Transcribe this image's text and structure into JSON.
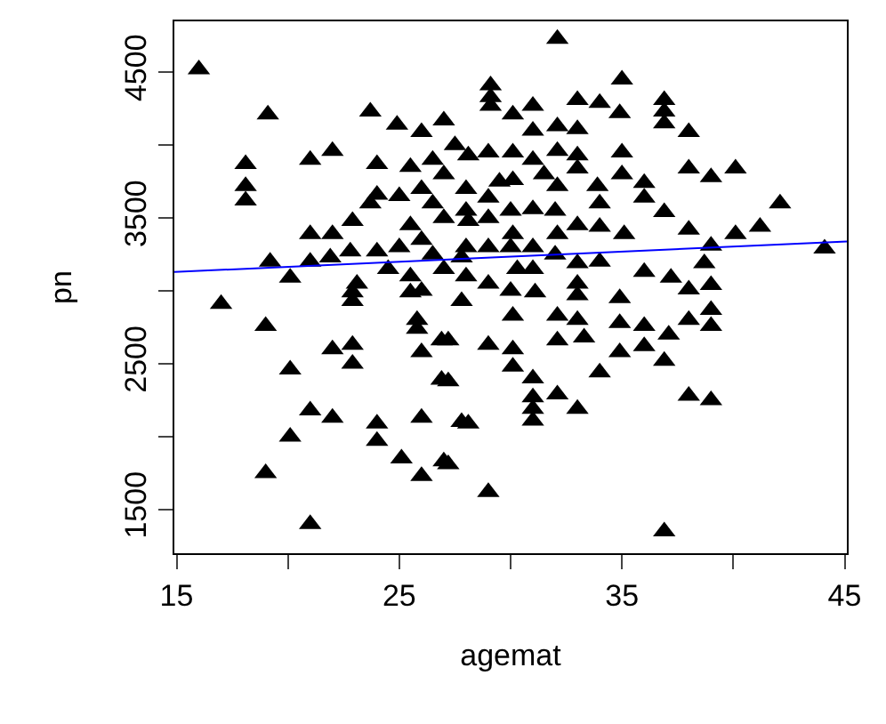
{
  "chart_data": {
    "type": "scatter",
    "xlabel": "agemat",
    "ylabel": "pn",
    "marker": "triangle",
    "xlim": [
      14.9,
      45.1
    ],
    "ylim": [
      1200,
      4850
    ],
    "xticks": [
      15,
      {
        "value": 20,
        "label": null
      },
      25,
      {
        "value": 30,
        "label": null
      },
      35,
      {
        "value": 40,
        "label": null
      },
      45
    ],
    "yticks": [
      {
        "value": 1500,
        "label": "1500"
      },
      {
        "value": 2000,
        "label": null
      },
      {
        "value": 2500,
        "label": "2500"
      },
      {
        "value": 3000,
        "label": null
      },
      {
        "value": 3500,
        "label": "3500"
      },
      {
        "value": 4000,
        "label": null
      },
      {
        "value": 4500,
        "label": "4500"
      }
    ],
    "series": [
      {
        "color": "#000000",
        "x": [
          16.0,
          19.1,
          23.7,
          24.9,
          26.0,
          27.0,
          22.0,
          21.0,
          18.1,
          24.0,
          18.1,
          18.1,
          24.0,
          23.7,
          21.0,
          22.0,
          22.9,
          19.2,
          21.0,
          21.9,
          22.8,
          24.0,
          20.1,
          23.1,
          17.0,
          19.0,
          20.1,
          22.0,
          22.9,
          22.9,
          21.0,
          22.0,
          24.0,
          24.0,
          26.0,
          20.1,
          19.0,
          21.0,
          25.1,
          26.0,
          27.0,
          25.8,
          25.8,
          26.9,
          26.0,
          26.9,
          27.8,
          22.9,
          22.9,
          25.5,
          36.9,
          29.0,
          28.1,
          31.0,
          31.0,
          31.0,
          33.0,
          32.1,
          38.0,
          39.0,
          30.1,
          31.0,
          34.0,
          29.0,
          30.1,
          32.1,
          33.3,
          34.9,
          36.0,
          36.9,
          34.9,
          36.0,
          37.1,
          38.0,
          39.0,
          39.0,
          39.0,
          38.0,
          34.9,
          33.0,
          30.1,
          32.1,
          33.0,
          27.8,
          31.1,
          27.2,
          27.2,
          27.2,
          32.1,
          35.0,
          29.1,
          29.1,
          29.1,
          30.1,
          31.0,
          33.0,
          34.0,
          34.9,
          36.9,
          36.9,
          36.9,
          38.0,
          31.0,
          32.1,
          33.0,
          28.1,
          29.0,
          30.1,
          31.0,
          32.1,
          33.0,
          35.0,
          30.1,
          33.0,
          35.0,
          36.0,
          38.0,
          39.0,
          40.1,
          42.1,
          44.1,
          41.2,
          40.1,
          39.0,
          38.0,
          36.9,
          36.0,
          33.9,
          32.1,
          34.0,
          35.1,
          33.0,
          36.0,
          38.7,
          31.0,
          29.0,
          28.1,
          30.1,
          32.1,
          27.8,
          30.3,
          37.2,
          25.5,
          26.0,
          26.5,
          27.0,
          25.5,
          26.0,
          26.5,
          27.0,
          25.5,
          26.0,
          27.0,
          28.0,
          28.0,
          28.0,
          28.0,
          29.0,
          29.0,
          29.0,
          30.0,
          30.0,
          30.0,
          31.0,
          31.0,
          32.0,
          32.0,
          33.0,
          33.0,
          34.0,
          34.0,
          26.5,
          27.5,
          25.0,
          25.0,
          24.5,
          29.5,
          31.5
        ],
        "values": [
          4520,
          4210,
          4230,
          4140,
          4090,
          4170,
          3960,
          3900,
          3870,
          3870,
          3720,
          3620,
          3660,
          3600,
          3390,
          3390,
          3480,
          3200,
          3200,
          3230,
          3270,
          3270,
          3090,
          3050,
          2910,
          2760,
          2460,
          2600,
          2630,
          2500,
          2180,
          2130,
          2090,
          1970,
          2130,
          2000,
          1750,
          1400,
          1850,
          1730,
          1830,
          2740,
          2800,
          2660,
          2580,
          2390,
          2100,
          2990,
          2930,
          2990,
          1350,
          1620,
          2090,
          2110,
          2190,
          2270,
          2190,
          2290,
          2280,
          2250,
          2480,
          2400,
          2440,
          2630,
          2600,
          2660,
          2680,
          2580,
          2620,
          2520,
          2780,
          2760,
          2700,
          2800,
          2870,
          2760,
          3040,
          3010,
          2950,
          2970,
          2830,
          2830,
          2800,
          2930,
          2990,
          1810,
          2660,
          2380,
          4730,
          4450,
          4410,
          4330,
          4270,
          4210,
          4270,
          4310,
          4290,
          4220,
          4310,
          4230,
          4150,
          4090,
          4100,
          4130,
          4110,
          3930,
          3950,
          3950,
          3900,
          3960,
          3930,
          3950,
          3760,
          3840,
          3800,
          3740,
          3840,
          3780,
          3840,
          3600,
          3290,
          3440,
          3390,
          3310,
          3420,
          3540,
          3640,
          3720,
          3720,
          3440,
          3390,
          3190,
          3130,
          3190,
          3560,
          3640,
          3480,
          3390,
          3390,
          3230,
          3150,
          3090,
          3850,
          3700,
          3600,
          3500,
          3450,
          3350,
          3250,
          3150,
          3100,
          3000,
          3800,
          3700,
          3550,
          3300,
          3100,
          3500,
          3300,
          3050,
          3550,
          3300,
          3000,
          3300,
          3150,
          3550,
          3250,
          3450,
          3050,
          3200,
          3600,
          3900,
          4000,
          3650,
          3300,
          3150,
          3750,
          3800
        ]
      },
      {
        "type": "line",
        "marker": "none",
        "color": "#0000ff",
        "x": [
          14.9,
          45.1
        ],
        "values": [
          3130,
          3340
        ]
      }
    ]
  }
}
